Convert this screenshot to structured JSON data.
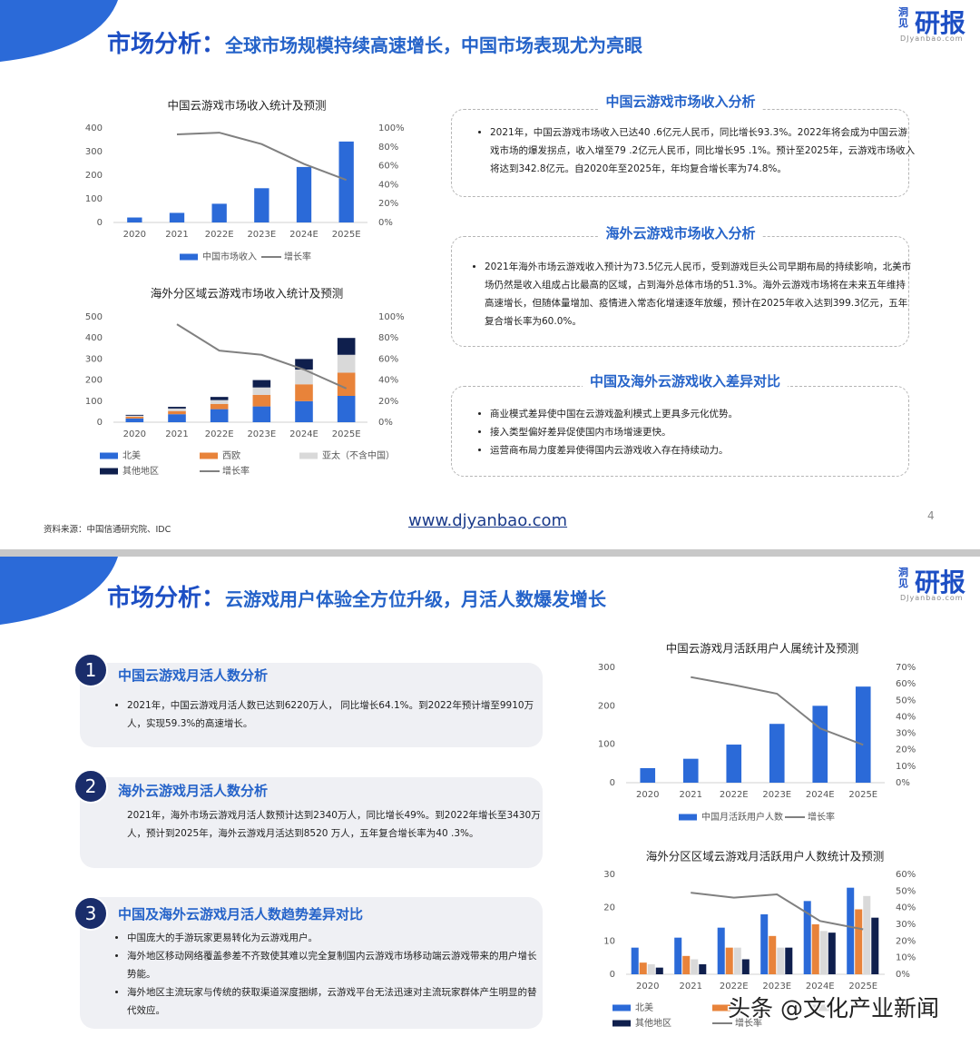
{
  "slides": [
    {
      "title_prefix": "市场分析：",
      "title": "全球市场规模持续高速增长，中国市场表现尤为亮眼",
      "logo_small": "洞见",
      "logo_main": "研报",
      "logo_url": "DJyanbao.com",
      "sections": [
        {
          "heading": "中国云游戏市场收入分析",
          "bullets": [
            "2021年，中国云游戏市场收入已达40 .6亿元人民币，同比增长93.3%。2022年将会成为中国云游戏市场的爆发拐点，收入增至79 .2亿元人民币，同比增长95 .1%。预计至2025年，云游戏市场收入将达到342.8亿元。自2020年至2025年，年均复合增长率为74.8%。"
          ]
        },
        {
          "heading": "海外云游戏市场收入分析",
          "bullets": [
            "2021年海外市场云游戏收入预计为73.5亿元人民币，受到游戏巨头公司早期布局的持续影响，北美市场仍然是收入组成占比最高的区域，占到海外总体市场的51.3%。海外云游戏市场将在未来五年维持高速增长，但随体量增加、疫情进入常态化增速逐年放缓，预计在2025年收入达到399.3亿元，五年复合增长率为60.0%。"
          ]
        },
        {
          "heading": "中国及海外云游戏收入差异对比",
          "bullets": [
            "商业模式差异使中国在云游戏盈利模式上更具多元化优势。",
            "接入类型偏好差异促使国内市场增速更快。",
            "运营商布局力度差异使得国内云游戏收入存在持续动力。"
          ]
        }
      ],
      "source": "资料来源：中国信通研究院、IDC",
      "link": "www.djyanbao.com",
      "page": "4"
    },
    {
      "title_prefix": "市场分析：",
      "title": "云游戏用户体验全方位升级，月活人数爆发增长",
      "logo_small": "洞见",
      "logo_main": "研报",
      "logo_url": "DJyanbao.com",
      "sections": [
        {
          "number": "1",
          "heading": "中国云游戏月活人数分析",
          "bullets": [
            "2021年，中国云游戏月活人数已达到6220万人， 同比增长64.1%。到2022年预计增至9910万人，实现59.3%的高速增长。"
          ]
        },
        {
          "number": "2",
          "heading": "海外云游戏月活人数分析",
          "bullets": [
            " 2021年，海外市场云游戏月活人数预计达到2340万人，同比增长49%。到2022年增长至3430万人，预计到2025年，海外云游戏月活达到8520 万人，五年复合增长率为40 .3%。"
          ]
        },
        {
          "number": "3",
          "heading": "中国及海外云游戏月活人数趋势差异对比",
          "bullets": [
            "中国庞大的手游玩家更易转化为云游戏用户。",
            "海外地区移动网络覆盖参差不齐致使其难以完全复制国内云游戏市场移动端云游戏带来的用户增长势能。",
            "海外地区主流玩家与传统的获取渠道深度捆绑，云游戏平台无法迅速对主流玩家群体产生明显的替代效应。"
          ]
        }
      ]
    }
  ],
  "watermark": "头条 @文化产业新闻",
  "chart_data": [
    {
      "type": "bar",
      "title": "中国云游戏市场收入统计及预测",
      "categories": [
        "2020",
        "2021",
        "2022E",
        "2023E",
        "2024E",
        "2025E"
      ],
      "ylim": [
        0,
        400
      ],
      "yticks": [
        0,
        100,
        200,
        300,
        400
      ],
      "y2lim": [
        0,
        100
      ],
      "y2ticks": [
        {
          "value": 0,
          "label": "0%"
        },
        {
          "value": 20,
          "label": "20%"
        },
        {
          "value": 40,
          "label": "40%"
        },
        {
          "value": 60,
          "label": "60%"
        },
        {
          "value": 80,
          "label": "80%"
        },
        {
          "value": 100,
          "label": "100%"
        }
      ],
      "series": [
        {
          "name": "中国市场收入",
          "color": "#2b6ad8",
          "values": [
            21,
            40.6,
            79.2,
            145,
            235,
            342.8
          ]
        },
        {
          "name": "增长率",
          "color": "#808080",
          "type": "line",
          "axis": "y2",
          "values": [
            null,
            93.3,
            95.1,
            83,
            62,
            45
          ]
        }
      ]
    },
    {
      "type": "bar",
      "stacked": true,
      "title": "海外分区域云游戏市场收入统计及预测",
      "categories": [
        "2020",
        "2021",
        "2022E",
        "2023E",
        "2024E",
        "2025E"
      ],
      "ylim": [
        0,
        500
      ],
      "yticks": [
        0,
        100,
        200,
        300,
        400,
        500
      ],
      "y2lim": [
        0,
        100
      ],
      "y2ticks": [
        {
          "value": 0,
          "label": "0%"
        },
        {
          "value": 20,
          "label": "20%"
        },
        {
          "value": 40,
          "label": "40%"
        },
        {
          "value": 60,
          "label": "60%"
        },
        {
          "value": 80,
          "label": "80%"
        },
        {
          "value": 100,
          "label": "100%"
        }
      ],
      "series": [
        {
          "name": "北美",
          "color": "#2b6ad8",
          "values": [
            18,
            38,
            62,
            75,
            100,
            125
          ]
        },
        {
          "name": "西欧",
          "color": "#e8833a",
          "values": [
            8,
            15,
            25,
            55,
            80,
            110
          ]
        },
        {
          "name": "亚太（不含中国）",
          "color": "#d9d9d9",
          "values": [
            5,
            12,
            18,
            35,
            70,
            85
          ]
        },
        {
          "name": "其他地区",
          "color": "#0f1f4d",
          "values": [
            4,
            8,
            15,
            35,
            50,
            80
          ]
        },
        {
          "name": "增长率",
          "color": "#808080",
          "type": "line",
          "axis": "y2",
          "values": [
            null,
            93,
            68,
            64,
            50,
            32
          ]
        }
      ]
    },
    {
      "type": "bar",
      "title": "中国云游戏月活跃用户人属统计及预测",
      "categories": [
        "2020",
        "2021",
        "2022E",
        "2023E",
        "2024E",
        "2025E"
      ],
      "ylim": [
        0,
        300
      ],
      "yticks": [
        0,
        100,
        200,
        300
      ],
      "y2lim": [
        0,
        70
      ],
      "y2ticks": [
        {
          "value": 0,
          "label": "0%"
        },
        {
          "value": 10,
          "label": "10%"
        },
        {
          "value": 20,
          "label": "20%"
        },
        {
          "value": 30,
          "label": "30%"
        },
        {
          "value": 40,
          "label": "40%"
        },
        {
          "value": 50,
          "label": "50%"
        },
        {
          "value": 60,
          "label": "60%"
        },
        {
          "value": 70,
          "label": "70%"
        }
      ],
      "series": [
        {
          "name": "中国月活跃用户人数",
          "color": "#2b6ad8",
          "values": [
            37.9,
            62.2,
            99.1,
            153,
            200,
            250
          ]
        },
        {
          "name": "增长率",
          "color": "#808080",
          "type": "line",
          "axis": "y2",
          "values": [
            null,
            64.1,
            59.3,
            54,
            33,
            23
          ]
        }
      ]
    },
    {
      "type": "bar",
      "stacked": false,
      "title": "海外分区区域云游戏月活跃用户人数统计及预测",
      "categories": [
        "2020",
        "2021",
        "2022E",
        "2023E",
        "2024E",
        "2025E"
      ],
      "ylim": [
        0,
        30
      ],
      "yticks": [
        0,
        10,
        20,
        30
      ],
      "y2lim": [
        0,
        60
      ],
      "y2ticks": [
        {
          "value": 0,
          "label": "0%"
        },
        {
          "value": 10,
          "label": "10%"
        },
        {
          "value": 20,
          "label": "20%"
        },
        {
          "value": 30,
          "label": "30%"
        },
        {
          "value": 40,
          "label": "40%"
        },
        {
          "value": 50,
          "label": "50%"
        },
        {
          "value": 60,
          "label": "60%"
        }
      ],
      "series": [
        {
          "name": "北美",
          "color": "#2b6ad8",
          "values": [
            8,
            11,
            14,
            18,
            22,
            26
          ]
        },
        {
          "color": "#e8833a",
          "values": [
            3.5,
            5.5,
            8,
            11.5,
            15,
            19.5
          ]
        },
        {
          "color": "#d9d9d9",
          "values": [
            3,
            4.5,
            8,
            8,
            13,
            23.5
          ]
        },
        {
          "name": "其他地区",
          "color": "#0f1f4d",
          "values": [
            2,
            3,
            4.5,
            8,
            12.5,
            17
          ]
        },
        {
          "name": "增长率",
          "color": "#808080",
          "type": "line",
          "axis": "y2",
          "values": [
            null,
            49,
            46,
            48,
            32,
            27
          ]
        }
      ]
    }
  ]
}
